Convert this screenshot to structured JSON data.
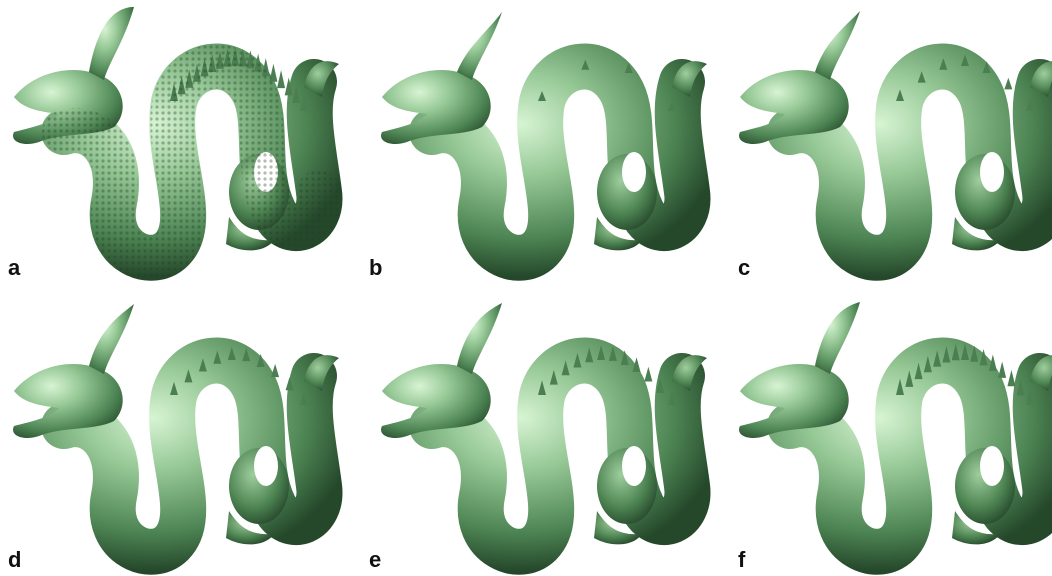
{
  "figure": {
    "panels": [
      {
        "id": "a",
        "label": "a",
        "detail": 1.0
      },
      {
        "id": "b",
        "label": "b",
        "detail": 0.0
      },
      {
        "id": "c",
        "label": "c",
        "detail": 0.2
      },
      {
        "id": "d",
        "label": "d",
        "detail": 0.4
      },
      {
        "id": "e",
        "label": "e",
        "detail": 0.6
      },
      {
        "id": "f",
        "label": "f",
        "detail": 0.8
      }
    ],
    "colors": {
      "surface_light": "#cdeec9",
      "surface_mid": "#7fb882",
      "surface_dark": "#2e5a36",
      "background": "#ffffff"
    }
  }
}
